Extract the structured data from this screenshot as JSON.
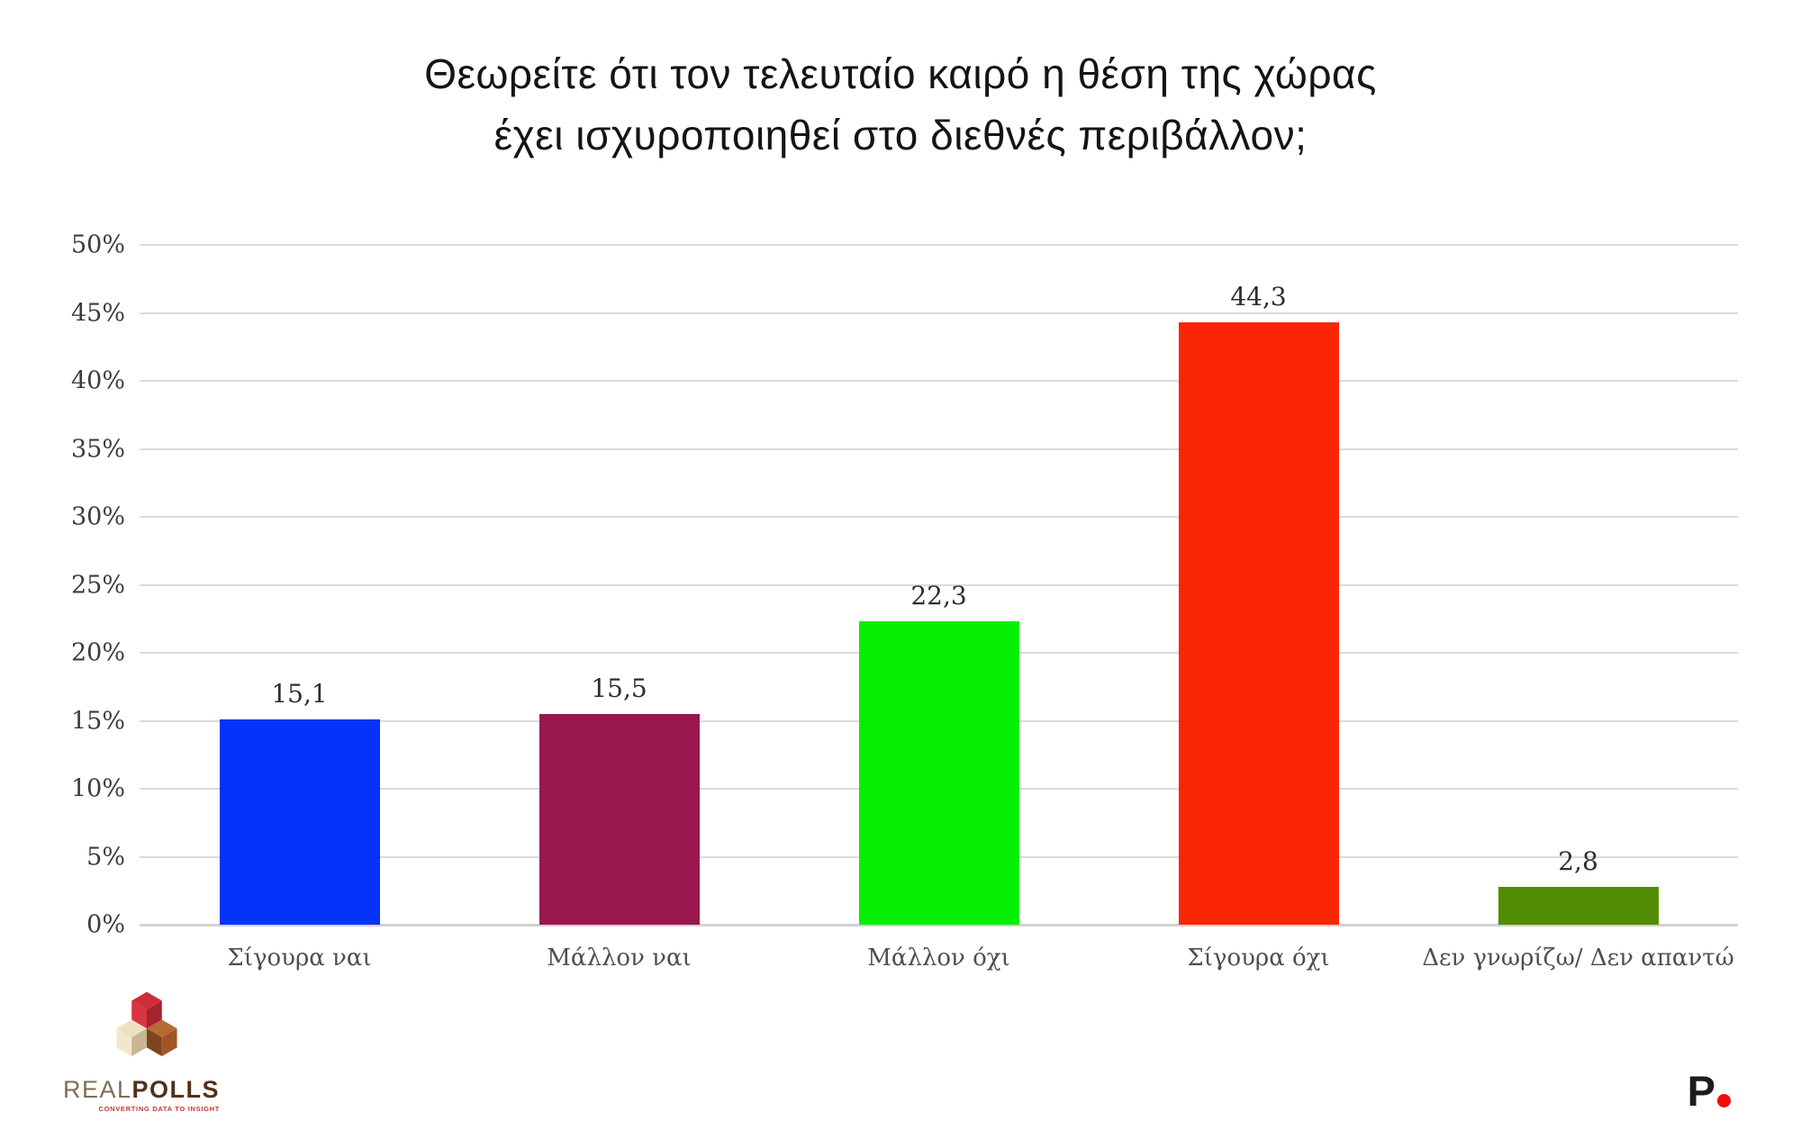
{
  "title": {
    "line1": "Θεωρείτε ότι τον τελευταίο καιρό η θέση της χώρας",
    "line2": "έχει ισχυροποιηθεί στο διεθνές περιβάλλον;"
  },
  "chart_data": {
    "type": "bar",
    "title": "Θεωρείτε ότι τον τελευταίο καιρό η θέση της χώρας έχει ισχυροποιηθεί στο διεθνές περιβάλλον;",
    "categories": [
      "Σίγουρα ναι",
      "Μάλλον ναι",
      "Μάλλον όχι",
      "Σίγουρα όχι",
      "Δεν γνωρίζω/ Δεν απαντώ"
    ],
    "values": [
      15.1,
      15.5,
      22.3,
      44.3,
      2.8
    ],
    "value_labels": [
      "15,1",
      "15,5",
      "22,3",
      "44,3",
      "2,8"
    ],
    "bar_colors": [
      "#0533fa",
      "#98174f",
      "#05ef05",
      "#fb2605",
      "#528c04"
    ],
    "xlabel": "",
    "ylabel": "",
    "ylim": [
      0,
      50
    ],
    "ytick_step": 5,
    "ytick_labels": [
      "0%",
      "5%",
      "10%",
      "15%",
      "20%",
      "25%",
      "30%",
      "35%",
      "40%",
      "45%",
      "50%"
    ],
    "grid": true,
    "gridline_color": "#dadada",
    "legend": false
  },
  "footer": {
    "logo": {
      "brand_light": "REAL",
      "brand_bold": "POLLS",
      "tagline": "CONVERTING DATA TO INSIGHT",
      "brand_light_color": "#7e6e54",
      "brand_bold_color": "#53301a",
      "tagline_color": "#c0392f"
    },
    "pmark": {
      "letter": "P",
      "dot_color": "#f20d0d"
    }
  }
}
